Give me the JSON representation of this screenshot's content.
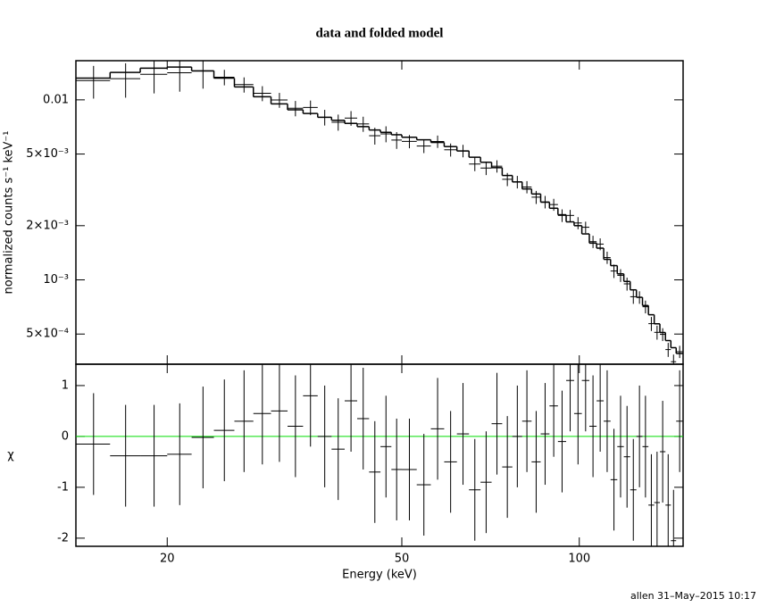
{
  "footer": "allen 31–May–2015 10:17",
  "chart_data": [
    {
      "type": "line",
      "title": "data and folded model",
      "ylabel": "normalized counts s⁻¹ keV⁻¹",
      "xlog": true,
      "ylog": true,
      "xlim": [
        14,
        150
      ],
      "ylim": [
        0.00034,
        0.0165
      ],
      "yticks": [
        {
          "value": 0.01,
          "label": "0.01"
        },
        {
          "value": 0.005,
          "label": "5×10⁻³"
        },
        {
          "value": 0.002,
          "label": "2×10⁻³"
        },
        {
          "value": 0.001,
          "label": "10⁻³"
        },
        {
          "value": 0.0005,
          "label": "5×10⁻⁴"
        }
      ],
      "x": [
        15,
        17,
        19,
        21,
        23,
        25,
        27,
        29,
        31,
        33,
        35,
        37,
        39,
        41,
        43,
        45,
        47,
        49,
        51.5,
        54.5,
        57.5,
        60.5,
        63.5,
        66.5,
        69.5,
        72.5,
        75.5,
        78.5,
        81.5,
        84.5,
        87.5,
        90.5,
        93.5,
        96.5,
        99.5,
        102.5,
        105.5,
        108.5,
        111.5,
        114.5,
        117.5,
        120.5,
        123.5,
        126.5,
        129.5,
        132.5,
        135.5,
        138.5,
        141.5,
        144.5,
        148
      ],
      "xerr": [
        1,
        1,
        1,
        1,
        1,
        1,
        1,
        1,
        1,
        1,
        1,
        1,
        1,
        1,
        1,
        1,
        1,
        1,
        1.5,
        1.5,
        1.5,
        1.5,
        1.5,
        1.5,
        1.5,
        1.5,
        1.5,
        1.5,
        1.5,
        1.5,
        1.5,
        1.5,
        1.5,
        1.5,
        1.5,
        1.5,
        1.5,
        1.5,
        1.5,
        1.5,
        1.5,
        1.5,
        1.5,
        1.5,
        1.5,
        1.5,
        1.5,
        1.5,
        1.5,
        1.5,
        2
      ],
      "series": [
        {
          "style": "errorbar",
          "color": "#000000",
          "values": [
            0.0128,
            0.01312,
            0.01386,
            0.01414,
            0.01444,
            0.01336,
            0.01215,
            0.01087,
            0.00998,
            0.00898,
            0.00907,
            0.008,
            0.00751,
            0.00792,
            0.00735,
            0.00632,
            0.00647,
            0.00598,
            0.00588,
            0.00554,
            0.00587,
            0.00528,
            0.00521,
            0.0044,
            0.00418,
            0.00428,
            0.00362,
            0.0035,
            0.00328,
            0.00288,
            0.00271,
            0.00262,
            0.00228,
            0.00228,
            0.00207,
            0.00196,
            0.00163,
            0.00158,
            0.00133,
            0.00112,
            0.00106,
            0.00095,
            0.000806,
            0.0008,
            0.000709,
            0.000571,
            0.000511,
            0.000498,
            0.00041,
            0.000351,
            0.000399
          ],
          "yerr": [
            0.00264,
            0.00284,
            0.003,
            0.00304,
            0.0029,
            0.00132,
            0.00118,
            0.00104,
            0.00095,
            0.00088,
            0.00084,
            0.0008,
            0.00077,
            0.00074,
            0.00071,
            0.00068,
            0.00066,
            0.00064,
            0.000496,
            0.00048,
            0.000464,
            0.00044,
            0.000416,
            0.000384,
            0.00036,
            0.000336,
            0.000304,
            0.00028,
            0.000256,
            0.00024,
            0.000216,
            0.0002,
            0.000184,
            0.000168,
            0.00016,
            0.000144,
            0.000128,
            0.00012,
            0.000104,
            9.6e-05,
            8.64e-05,
            7.84e-05,
            7.04e-05,
            6.4e-05,
            5.76e-05,
            5.12e-05,
            4.56e-05,
            4.08e-05,
            3.68e-05,
            3.36e-05,
            3.12e-05
          ]
        },
        {
          "style": "step",
          "color": "#000000",
          "values": [
            0.0132,
            0.0142,
            0.015,
            0.0152,
            0.0145,
            0.0132,
            0.0118,
            0.0104,
            0.0095,
            0.0088,
            0.0084,
            0.008,
            0.0077,
            0.0074,
            0.0071,
            0.0068,
            0.0066,
            0.0064,
            0.0062,
            0.006,
            0.0058,
            0.0055,
            0.0052,
            0.0048,
            0.0045,
            0.0042,
            0.0038,
            0.0035,
            0.0032,
            0.003,
            0.0027,
            0.0025,
            0.0023,
            0.0021,
            0.002,
            0.0018,
            0.0016,
            0.0015,
            0.0013,
            0.0012,
            0.00108,
            0.00098,
            0.00088,
            0.0008,
            0.00072,
            0.00064,
            0.00057,
            0.00051,
            0.00046,
            0.00042,
            0.00039
          ]
        }
      ]
    },
    {
      "type": "line",
      "xlabel": "Energy (keV)",
      "ylabel": "χ",
      "xlog": true,
      "xlim": [
        14,
        150
      ],
      "ylim": [
        -2.16,
        1.42
      ],
      "xticks": [
        20,
        50,
        100
      ],
      "yticks": [
        -2,
        -1,
        0,
        1
      ],
      "reference_line": {
        "value": 0,
        "color": "#00dd00"
      },
      "series": [
        {
          "style": "errorbar",
          "color": "#000000",
          "values": [
            -0.15,
            -0.38,
            -0.38,
            -0.35,
            -0.02,
            0.12,
            0.3,
            0.45,
            0.5,
            0.2,
            0.8,
            0,
            -0.25,
            0.7,
            0.35,
            -0.7,
            -0.2,
            -0.65,
            -0.65,
            -0.95,
            0.15,
            -0.5,
            0.05,
            -1.05,
            -0.9,
            0.25,
            -0.6,
            0,
            0.3,
            -0.5,
            0.05,
            0.6,
            -0.1,
            1.1,
            0.45,
            1.1,
            0.2,
            0.7,
            0.3,
            -0.85,
            -0.2,
            -0.4,
            -1.05,
            0,
            -0.2,
            -1.35,
            -1.3,
            -0.3,
            -1.35,
            -2.05,
            0.3
          ],
          "yerr": [
            1,
            1,
            1,
            1,
            1,
            1,
            1,
            1,
            1,
            1,
            1,
            1,
            1,
            1,
            1,
            1,
            1,
            1,
            1,
            1,
            1,
            1,
            1,
            1,
            1,
            1,
            1,
            1,
            1,
            1,
            1,
            1,
            1,
            1,
            1,
            1,
            1,
            1,
            1,
            1,
            1,
            1,
            1,
            1,
            1,
            1,
            1,
            1,
            1,
            1,
            1
          ]
        }
      ]
    }
  ]
}
